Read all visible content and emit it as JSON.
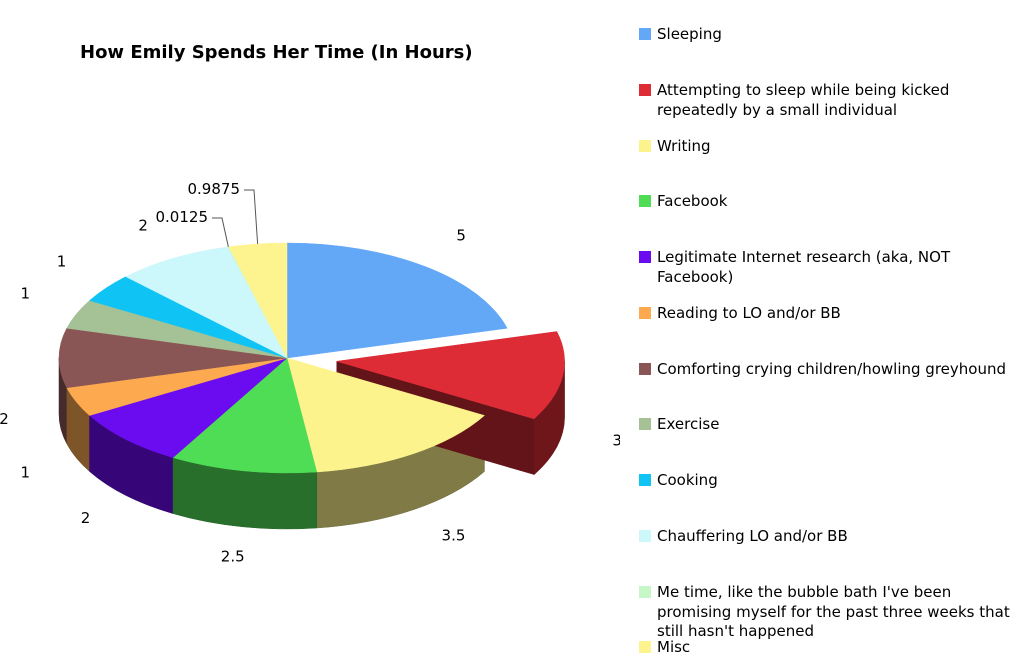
{
  "chart_data": {
    "type": "pie",
    "title": "How Emily Spends Her Time (In Hours)",
    "exploded": "Attempting to sleep while being kicked repeatedly by a small individual",
    "legend_position": "right",
    "slices": [
      {
        "name": "Sleeping",
        "value": 5,
        "label": "5",
        "color": "#63a8f7"
      },
      {
        "name": "Attempting to sleep while being kicked repeatedly by a small individual",
        "value": 3,
        "label": "3",
        "color": "#dd2c36"
      },
      {
        "name": "Writing",
        "value": 3.5,
        "label": "3.5",
        "color": "#fdf38c"
      },
      {
        "name": "Facebook",
        "value": 2.5,
        "label": "2.5",
        "color": "#4fdd55"
      },
      {
        "name": "Legitimate Internet research (aka, NOT Facebook)",
        "value": 2,
        "label": "2",
        "color": "#6b0cf0"
      },
      {
        "name": "Reading to LO and/or BB",
        "value": 1,
        "label": "1",
        "color": "#fca94f"
      },
      {
        "name": "Comforting crying children/howling greyhound",
        "value": 2,
        "label": "2",
        "color": "#8a5555"
      },
      {
        "name": "Exercise",
        "value": 1,
        "label": "1",
        "color": "#a4c295"
      },
      {
        "name": "Cooking",
        "value": 1,
        "label": "1",
        "color": "#0fc4f4"
      },
      {
        "name": "Chauffering LO and/or BB",
        "value": 2,
        "label": "2",
        "color": "#ccf7fb"
      },
      {
        "name": "Me time, like the bubble bath I've been promising myself for the past three weeks that still hasn't happened",
        "value": 0.0125,
        "label": "0.0125",
        "color": "#c6f7c6"
      },
      {
        "name": "Misc",
        "value": 0.9875,
        "label": "0.9875",
        "color": "#fdf48f"
      }
    ]
  }
}
